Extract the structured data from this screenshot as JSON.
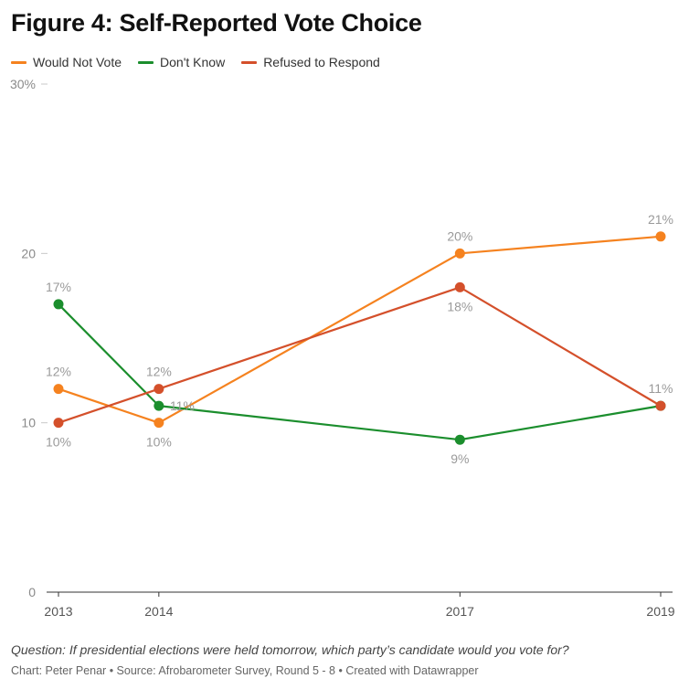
{
  "chart_data": {
    "type": "line",
    "title": "Figure 4: Self-Reported Vote Choice",
    "x": [
      2013,
      2014,
      2017,
      2019
    ],
    "ylim": [
      0,
      30
    ],
    "yticks": [
      0,
      10,
      20,
      30
    ],
    "ytick_labels": [
      "0",
      "10",
      "20",
      "30%"
    ],
    "grid": "y-ticks only",
    "legend_placement": "top-left",
    "series": [
      {
        "name": "Would Not Vote",
        "color": "#f5821f",
        "values": [
          12,
          10,
          20,
          21
        ],
        "labels": [
          "12%",
          "10%",
          "20%",
          "21%"
        ],
        "label_pos": [
          "above",
          "below",
          "above",
          "above"
        ]
      },
      {
        "name": "Don't Know",
        "color": "#1b8e2d",
        "values": [
          17,
          11,
          9,
          11
        ],
        "labels": [
          "17%",
          "11%",
          "9%",
          "11%"
        ],
        "label_pos": [
          "above",
          "right",
          "below",
          "above"
        ]
      },
      {
        "name": "Refused to Respond",
        "color": "#d4502b",
        "values": [
          10,
          12,
          18,
          11
        ],
        "labels": [
          "10%",
          "12%",
          "18%",
          ""
        ],
        "label_pos": [
          "below",
          "above",
          "below",
          "none"
        ]
      }
    ],
    "note": "Question: If presidential elections were held tomorrow, which party’s candidate would you vote for?",
    "byline": "Chart: Peter Penar • Source: Afrobarometer Survey, Round 5 - 8 • Created with Datawrapper"
  }
}
